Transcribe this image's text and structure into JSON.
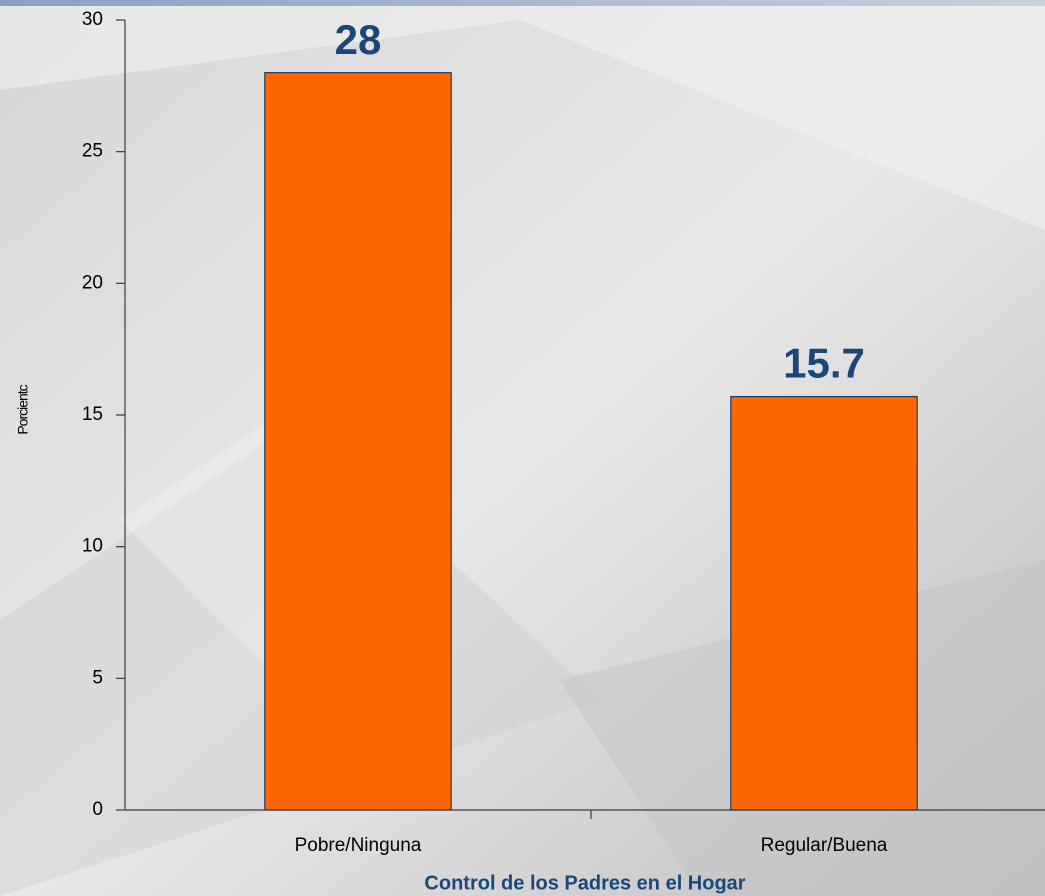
{
  "chart_data": {
    "type": "bar",
    "categories": [
      "Pobre/Ninguna",
      "Regular/Buena"
    ],
    "values": [
      28,
      15.7
    ],
    "color": "#ff6600",
    "ylim": [
      0,
      30
    ],
    "yticks": [
      0,
      5,
      10,
      15,
      20,
      25,
      30
    ],
    "y_label": "Porcientc",
    "x_label": "Control de los Padres en el Hogar"
  }
}
